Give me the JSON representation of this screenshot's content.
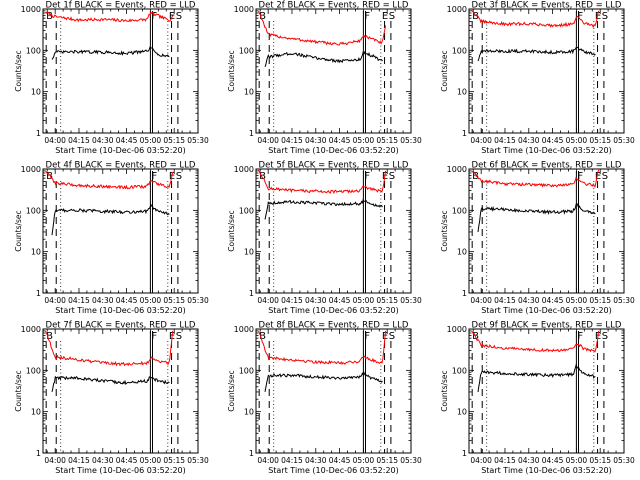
{
  "figure": {
    "background": "#ffffff",
    "axis_color": "#000000"
  },
  "chart_data": [
    {
      "type": "line",
      "title": "Det 1f BLACK = Events, RED = LLD",
      "xlabel": "Start Time (10-Dec-06 03:52:20)",
      "ylabel": "Counts/sec",
      "yscale": "log",
      "ylim": [
        1,
        1000
      ],
      "ytick_labels": [
        "1",
        "10",
        "100",
        "1000"
      ],
      "xlim": [
        "03:52:20",
        "05:30:00"
      ],
      "xtick_labels": [
        "04:00",
        "04:15",
        "04:30",
        "04:45",
        "05:00",
        "05:15",
        "05:30"
      ],
      "markers": {
        "B": "03:53:40",
        "F": "05:00:00",
        "E": "05:11:00",
        "S": "05:15:20"
      },
      "dashed_lines": [
        "03:54:20",
        "04:00:40",
        "05:13:20",
        "05:17:20"
      ],
      "dotted_lines": [
        "04:03:30",
        "05:11:00"
      ],
      "solid_lines": [
        "05:00:00",
        "05:01:20"
      ],
      "series": [
        {
          "name": "RED",
          "color": "#ff0000",
          "x": [
            "03:54",
            "04:00",
            "04:15",
            "04:30",
            "04:45",
            "04:58",
            "05:00",
            "05:05",
            "05:12",
            "05:14"
          ],
          "y": [
            850,
            650,
            540,
            560,
            520,
            560,
            820,
            680,
            530,
            700
          ]
        },
        {
          "name": "BLACK",
          "color": "#000000",
          "x": [
            "03:58",
            "04:00",
            "04:15",
            "04:30",
            "04:45",
            "04:58",
            "05:00",
            "05:05",
            "05:12"
          ],
          "y": [
            60,
            90,
            92,
            90,
            85,
            95,
            115,
            80,
            70
          ]
        }
      ]
    },
    {
      "type": "line",
      "title": "Det 2f BLACK = Events, RED = LLD",
      "xlabel": "Start Time (10-Dec-06 03:52:20)",
      "ylabel": "Counts/sec",
      "yscale": "log",
      "ylim": [
        1,
        1000
      ],
      "ytick_labels": [
        "1",
        "10",
        "100",
        "1000"
      ],
      "xlim": [
        "03:52:20",
        "05:30:00"
      ],
      "xtick_labels": [
        "04:00",
        "04:15",
        "04:30",
        "04:45",
        "05:00",
        "05:15",
        "05:30"
      ],
      "markers": {
        "B": "03:53:40",
        "F": "05:00:00",
        "E": "05:11:00",
        "S": "05:15:20"
      },
      "dashed_lines": [
        "03:54:20",
        "04:00:40",
        "05:13:20",
        "05:17:20"
      ],
      "dotted_lines": [
        "04:03:30",
        "05:11:00"
      ],
      "solid_lines": [
        "05:00:00",
        "05:01:20"
      ],
      "series": [
        {
          "name": "RED",
          "color": "#ff0000",
          "x": [
            "03:54",
            "04:00",
            "04:15",
            "04:30",
            "04:45",
            "04:58",
            "05:00",
            "05:05",
            "05:12",
            "05:14"
          ],
          "y": [
            900,
            240,
            190,
            160,
            140,
            170,
            230,
            190,
            150,
            400
          ]
        },
        {
          "name": "BLACK",
          "color": "#000000",
          "x": [
            "03:58",
            "04:00",
            "04:15",
            "04:30",
            "04:45",
            "04:58",
            "05:00",
            "05:05",
            "05:12"
          ],
          "y": [
            40,
            70,
            85,
            65,
            55,
            60,
            90,
            75,
            55
          ]
        }
      ]
    },
    {
      "type": "line",
      "title": "Det 3f BLACK = Events, RED = LLD",
      "xlabel": "Start Time (10-Dec-06 03:52:20)",
      "ylabel": "Counts/sec",
      "yscale": "log",
      "ylim": [
        1,
        1000
      ],
      "ytick_labels": [
        "1",
        "10",
        "100",
        "1000"
      ],
      "xlim": [
        "03:52:20",
        "05:30:00"
      ],
      "xtick_labels": [
        "04:00",
        "04:15",
        "04:30",
        "04:45",
        "05:00",
        "05:15",
        "05:30"
      ],
      "markers": {
        "B": "03:53:40",
        "F": "05:00:00",
        "E": "05:11:00",
        "S": "05:15:20"
      },
      "dashed_lines": [
        "03:54:20",
        "04:00:40",
        "05:13:20",
        "05:17:20"
      ],
      "dotted_lines": [
        "04:03:30",
        "05:11:00"
      ],
      "solid_lines": [
        "05:00:00",
        "05:01:20"
      ],
      "series": [
        {
          "name": "RED",
          "color": "#ff0000",
          "x": [
            "03:54",
            "04:00",
            "04:15",
            "04:30",
            "04:45",
            "04:58",
            "05:00",
            "05:05",
            "05:12",
            "05:14"
          ],
          "y": [
            950,
            500,
            430,
            440,
            400,
            430,
            650,
            450,
            380,
            900
          ]
        },
        {
          "name": "BLACK",
          "color": "#000000",
          "x": [
            "03:58",
            "04:00",
            "04:15",
            "04:30",
            "04:45",
            "04:58",
            "05:00",
            "05:05",
            "05:12"
          ],
          "y": [
            55,
            95,
            95,
            95,
            90,
            95,
            120,
            90,
            80
          ]
        }
      ]
    },
    {
      "type": "line",
      "title": "Det 4f BLACK = Events, RED = LLD",
      "xlabel": "Start Time (10-Dec-06 03:52:20)",
      "ylabel": "Counts/sec",
      "yscale": "log",
      "ylim": [
        1,
        1000
      ],
      "ytick_labels": [
        "1",
        "10",
        "100",
        "1000"
      ],
      "xlim": [
        "03:52:20",
        "05:30:00"
      ],
      "xtick_labels": [
        "04:00",
        "04:15",
        "04:30",
        "04:45",
        "05:00",
        "05:15",
        "05:30"
      ],
      "markers": {
        "B": "03:53:40",
        "F": "05:00:00",
        "E": "05:11:00",
        "S": "05:15:20"
      },
      "dashed_lines": [
        "03:54:20",
        "04:00:40",
        "05:13:20",
        "05:17:20"
      ],
      "dotted_lines": [
        "04:03:30",
        "05:11:00"
      ],
      "solid_lines": [
        "05:00:00",
        "05:01:20"
      ],
      "series": [
        {
          "name": "RED",
          "color": "#ff0000",
          "x": [
            "03:54",
            "04:00",
            "04:15",
            "04:30",
            "04:45",
            "04:58",
            "05:00",
            "05:05",
            "05:12",
            "05:14"
          ],
          "y": [
            900,
            460,
            400,
            380,
            360,
            380,
            520,
            430,
            360,
            850
          ]
        },
        {
          "name": "BLACK",
          "color": "#000000",
          "x": [
            "03:58",
            "04:00",
            "04:15",
            "04:30",
            "04:45",
            "04:58",
            "05:00",
            "05:05",
            "05:12"
          ],
          "y": [
            25,
            100,
            100,
            95,
            90,
            95,
            130,
            95,
            80
          ]
        }
      ]
    },
    {
      "type": "line",
      "title": "Det 5f BLACK = Events, RED = LLD",
      "xlabel": "Start Time (10-Dec-06 03:52:20)",
      "ylabel": "Counts/sec",
      "yscale": "log",
      "ylim": [
        1,
        1000
      ],
      "ytick_labels": [
        "1",
        "10",
        "100",
        "1000"
      ],
      "xlim": [
        "03:52:20",
        "05:30:00"
      ],
      "xtick_labels": [
        "04:00",
        "04:15",
        "04:30",
        "04:45",
        "05:00",
        "05:15",
        "05:30"
      ],
      "markers": {
        "B": "03:53:40",
        "F": "05:00:00",
        "E": "05:11:00",
        "S": "05:15:20"
      },
      "dashed_lines": [
        "03:54:20",
        "04:00:40",
        "05:13:20",
        "05:17:20"
      ],
      "dotted_lines": [
        "04:03:30",
        "05:11:00"
      ],
      "solid_lines": [
        "05:00:00",
        "05:01:20"
      ],
      "series": [
        {
          "name": "RED",
          "color": "#ff0000",
          "x": [
            "03:54",
            "04:00",
            "04:15",
            "04:30",
            "04:45",
            "04:58",
            "05:00",
            "05:05",
            "05:12",
            "05:14"
          ],
          "y": [
            950,
            340,
            300,
            290,
            280,
            300,
            380,
            320,
            290,
            900
          ]
        },
        {
          "name": "BLACK",
          "color": "#000000",
          "x": [
            "03:58",
            "04:00",
            "04:15",
            "04:30",
            "04:45",
            "04:58",
            "05:00",
            "05:05",
            "05:12"
          ],
          "y": [
            60,
            150,
            160,
            150,
            140,
            145,
            170,
            140,
            120
          ]
        }
      ]
    },
    {
      "type": "line",
      "title": "Det 6f BLACK = Events, RED = LLD",
      "xlabel": "Start Time (10-Dec-06 03:52:20)",
      "ylabel": "Counts/sec",
      "yscale": "log",
      "ylim": [
        1,
        1000
      ],
      "ytick_labels": [
        "1",
        "10",
        "100",
        "1000"
      ],
      "xlim": [
        "03:52:20",
        "05:30:00"
      ],
      "xtick_labels": [
        "04:00",
        "04:15",
        "04:30",
        "04:45",
        "05:00",
        "05:15",
        "05:30"
      ],
      "markers": {
        "B": "03:53:40",
        "F": "05:00:00",
        "E": "05:11:00",
        "S": "05:15:20"
      },
      "dashed_lines": [
        "03:54:20",
        "04:00:40",
        "05:13:20",
        "05:17:20"
      ],
      "dotted_lines": [
        "04:03:30",
        "05:11:00"
      ],
      "solid_lines": [
        "05:00:00",
        "05:01:20"
      ],
      "series": [
        {
          "name": "RED",
          "color": "#ff0000",
          "x": [
            "03:54",
            "04:00",
            "04:15",
            "04:30",
            "04:45",
            "04:58",
            "05:00",
            "05:05",
            "05:12",
            "05:14"
          ],
          "y": [
            900,
            520,
            440,
            420,
            400,
            420,
            600,
            440,
            400,
            950
          ]
        },
        {
          "name": "BLACK",
          "color": "#000000",
          "x": [
            "03:58",
            "04:00",
            "04:15",
            "04:30",
            "04:45",
            "04:58",
            "05:00",
            "05:05",
            "05:12"
          ],
          "y": [
            30,
            110,
            105,
            95,
            90,
            95,
            140,
            95,
            85
          ]
        }
      ]
    },
    {
      "type": "line",
      "title": "Det 7f BLACK = Events, RED = LLD",
      "xlabel": "Start Time (10-Dec-06 03:52:20)",
      "ylabel": "Counts/sec",
      "yscale": "log",
      "ylim": [
        1,
        1000
      ],
      "ytick_labels": [
        "1",
        "10",
        "100",
        "1000"
      ],
      "xlim": [
        "03:52:20",
        "05:30:00"
      ],
      "xtick_labels": [
        "04:00",
        "04:15",
        "04:30",
        "04:45",
        "05:00",
        "05:15",
        "05:30"
      ],
      "markers": {
        "B": "03:53:40",
        "F": "05:00:00",
        "E": "05:11:00",
        "S": "05:15:20"
      },
      "dashed_lines": [
        "03:54:20",
        "04:00:40",
        "05:13:20",
        "05:17:20"
      ],
      "dotted_lines": [
        "04:03:30",
        "05:11:00"
      ],
      "solid_lines": [
        "05:00:00",
        "05:01:20"
      ],
      "series": [
        {
          "name": "RED",
          "color": "#ff0000",
          "x": [
            "03:54",
            "04:00",
            "04:15",
            "04:30",
            "04:45",
            "04:58",
            "05:00",
            "05:05",
            "05:12",
            "05:14"
          ],
          "y": [
            900,
            210,
            180,
            150,
            140,
            150,
            200,
            170,
            150,
            900
          ]
        },
        {
          "name": "BLACK",
          "color": "#000000",
          "x": [
            "03:58",
            "04:00",
            "04:15",
            "04:30",
            "04:45",
            "04:58",
            "05:00",
            "05:05",
            "05:12"
          ],
          "y": [
            30,
            65,
            65,
            55,
            50,
            55,
            70,
            55,
            50
          ]
        }
      ]
    },
    {
      "type": "line",
      "title": "Det 8f BLACK = Events, RED = LLD",
      "xlabel": "Start Time (10-Dec-06 03:52:20)",
      "ylabel": "Counts/sec",
      "yscale": "log",
      "ylim": [
        1,
        1000
      ],
      "ytick_labels": [
        "1",
        "10",
        "100",
        "1000"
      ],
      "xlim": [
        "03:52:20",
        "05:30:00"
      ],
      "xtick_labels": [
        "04:00",
        "04:15",
        "04:30",
        "04:45",
        "05:00",
        "05:15",
        "05:30"
      ],
      "markers": {
        "B": "03:53:40",
        "F": "05:00:00",
        "E": "05:11:00",
        "S": "05:15:20"
      },
      "dashed_lines": [
        "03:54:20",
        "04:00:40",
        "05:13:20",
        "05:17:20"
      ],
      "dotted_lines": [
        "04:03:30",
        "05:11:00"
      ],
      "solid_lines": [
        "05:00:00",
        "05:01:20"
      ],
      "series": [
        {
          "name": "RED",
          "color": "#ff0000",
          "x": [
            "03:54",
            "04:00",
            "04:15",
            "04:30",
            "04:45",
            "04:58",
            "05:00",
            "05:05",
            "05:12",
            "05:14"
          ],
          "y": [
            900,
            200,
            180,
            160,
            150,
            165,
            220,
            180,
            150,
            900
          ]
        },
        {
          "name": "BLACK",
          "color": "#000000",
          "x": [
            "03:58",
            "04:00",
            "04:15",
            "04:30",
            "04:45",
            "04:58",
            "05:00",
            "05:05",
            "05:12"
          ],
          "y": [
            30,
            75,
            75,
            70,
            65,
            70,
            85,
            65,
            55
          ]
        }
      ]
    },
    {
      "type": "line",
      "title": "Det 9f BLACK = Events, RED = LLD",
      "xlabel": "Start Time (10-Dec-06 03:52:20)",
      "ylabel": "Counts/sec",
      "yscale": "log",
      "ylim": [
        1,
        1000
      ],
      "ytick_labels": [
        "1",
        "10",
        "100",
        "1000"
      ],
      "xlim": [
        "03:52:20",
        "05:30:00"
      ],
      "xtick_labels": [
        "04:00",
        "04:15",
        "04:30",
        "04:45",
        "05:00",
        "05:15",
        "05:30"
      ],
      "markers": {
        "B": "03:53:40",
        "F": "05:00:00",
        "E": "05:11:00",
        "S": "05:15:20"
      },
      "dashed_lines": [
        "03:54:20",
        "04:00:40",
        "05:13:20",
        "05:17:20"
      ],
      "dotted_lines": [
        "04:03:30",
        "05:11:00"
      ],
      "solid_lines": [
        "05:00:00",
        "05:01:20"
      ],
      "series": [
        {
          "name": "RED",
          "color": "#ff0000",
          "x": [
            "03:54",
            "04:00",
            "04:15",
            "04:30",
            "04:45",
            "04:58",
            "05:00",
            "05:05",
            "05:12",
            "05:14"
          ],
          "y": [
            900,
            400,
            340,
            320,
            300,
            320,
            450,
            330,
            290,
            900
          ]
        },
        {
          "name": "BLACK",
          "color": "#000000",
          "x": [
            "03:58",
            "04:00",
            "04:15",
            "04:30",
            "04:45",
            "04:58",
            "05:00",
            "05:05",
            "05:12"
          ],
          "y": [
            30,
            90,
            85,
            80,
            75,
            80,
            130,
            80,
            70
          ]
        }
      ]
    }
  ]
}
